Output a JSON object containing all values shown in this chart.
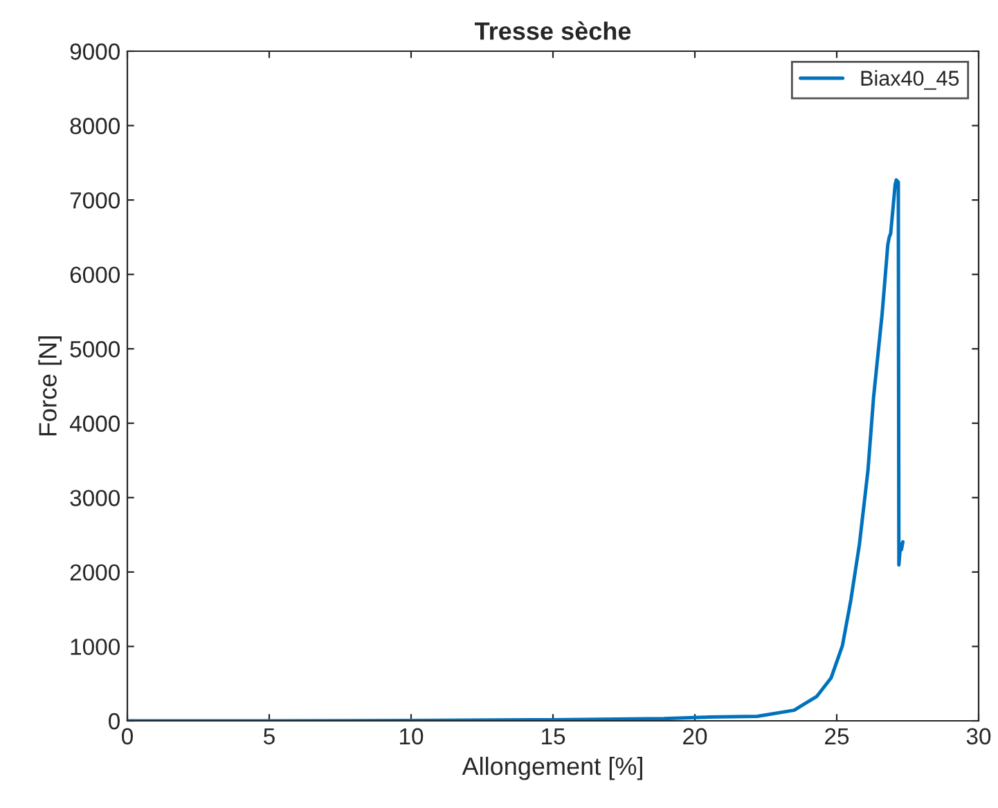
{
  "chart_data": {
    "type": "line",
    "title": "Tresse sèche",
    "xlabel": "Allongement [%]",
    "ylabel": "Force [N]",
    "xlim": [
      0,
      30
    ],
    "xticks": [
      0,
      5,
      10,
      15,
      20,
      25,
      30
    ],
    "ylim": [
      0,
      9000
    ],
    "yticks": [
      0,
      1000,
      2000,
      3000,
      4000,
      5000,
      6000,
      7000,
      8000,
      9000
    ],
    "grid": false,
    "legend": "top right",
    "line_style": "solid",
    "marker": "none",
    "series": [
      {
        "name": "Biax40_45",
        "color": "#0072bd",
        "x": [
          0,
          5,
          10,
          15,
          18.9,
          20.5,
          22.2,
          23.5,
          24.3,
          24.8,
          25.2,
          25.5,
          25.8,
          26.1,
          26.3,
          26.6,
          26.8,
          26.85,
          26.9,
          27.06,
          27.1,
          27.17,
          27.19,
          27.25,
          27.28,
          27.33
        ],
        "values": [
          0,
          0,
          5,
          15,
          30,
          50,
          60,
          143,
          330,
          576,
          1010,
          1630,
          2375,
          3365,
          4357,
          5472,
          6400,
          6500,
          6550,
          7210,
          7270,
          7240,
          2095,
          2375,
          2300,
          2405
        ]
      }
    ]
  }
}
